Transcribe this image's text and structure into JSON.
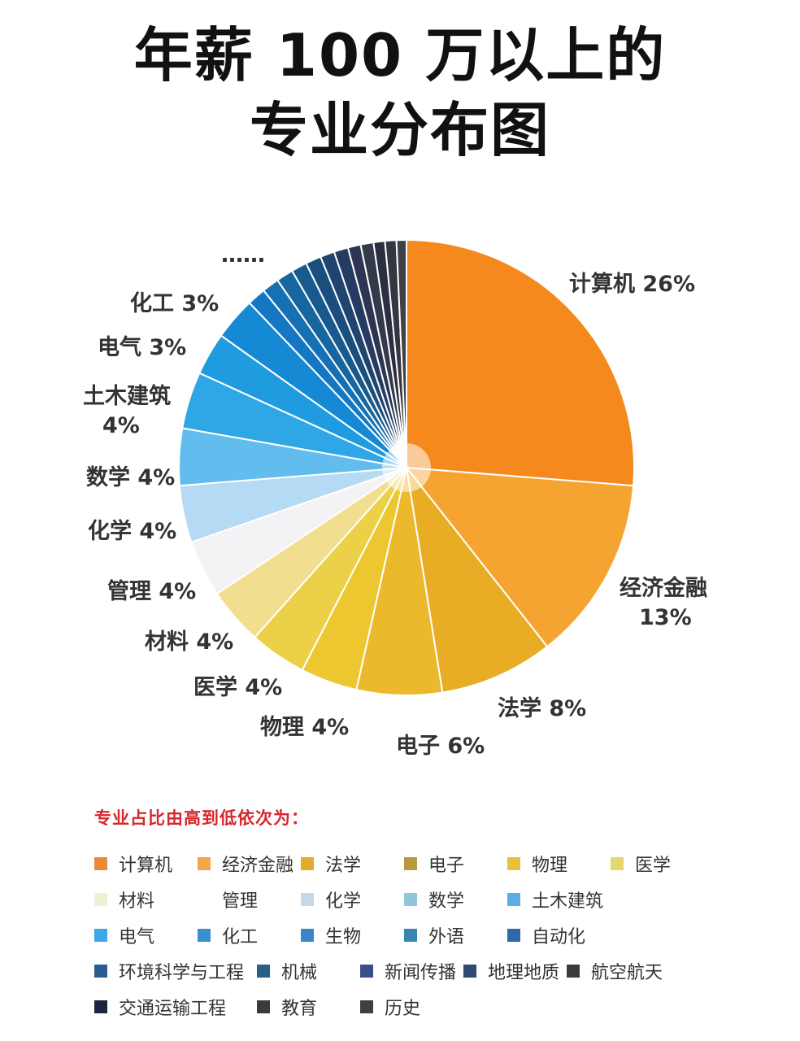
{
  "title": {
    "line1": "年薪 100 万以上的",
    "line2": "专业分布图"
  },
  "chart_data": {
    "type": "pie",
    "title": "年薪 100 万以上的专业分布图",
    "slices": [
      {
        "label": "计算机 26%",
        "value": 26,
        "color": "#f5891e"
      },
      {
        "label": "经济金融\n13%",
        "value": 13,
        "color": "#f6a431"
      },
      {
        "label": "法学 8%",
        "value": 8,
        "color": "#e9ad25"
      },
      {
        "label": "电子 6%",
        "value": 6,
        "color": "#ecb92c"
      },
      {
        "label": "物理 4%",
        "value": 4,
        "color": "#edc730"
      },
      {
        "label": "医学 4%",
        "value": 4,
        "color": "#ecd048"
      },
      {
        "label": "材料 4%",
        "value": 4,
        "color": "#f1de8e"
      },
      {
        "label": "管理 4%",
        "value": 4,
        "color": "#f3f3f6"
      },
      {
        "label": "化学 4%",
        "value": 4,
        "color": "#b5daf3"
      },
      {
        "label": "数学 4%",
        "value": 4,
        "color": "#62bdee"
      },
      {
        "label": "土木建筑\n4%",
        "value": 4,
        "color": "#2fa7e6"
      },
      {
        "label": "电气 3%",
        "value": 3,
        "color": "#1f9be0"
      },
      {
        "label": "化工 3%",
        "value": 3,
        "color": "#1589d4"
      },
      {
        "label": "",
        "value": 1.3,
        "color": "#1577c3"
      },
      {
        "label": "",
        "value": 1.2,
        "color": "#1570b4"
      },
      {
        "label": "",
        "value": 1.2,
        "color": "#16669f"
      },
      {
        "label": "",
        "value": 1.1,
        "color": "#185a8d"
      },
      {
        "label": "",
        "value": 1.1,
        "color": "#1c4e7d"
      },
      {
        "label": "",
        "value": 1.0,
        "color": "#1f4470"
      },
      {
        "label": "",
        "value": 1.0,
        "color": "#253b63"
      },
      {
        "label": "",
        "value": 0.9,
        "color": "#2c3553"
      },
      {
        "label": "",
        "value": 0.9,
        "color": "#333a4a"
      },
      {
        "label": "",
        "value": 0.8,
        "color": "#2a2f42"
      },
      {
        "label": "",
        "value": 0.8,
        "color": "#343640"
      },
      {
        "label": "",
        "value": 0.7,
        "color": "#3f4048"
      }
    ],
    "more_label": "……"
  },
  "legend": {
    "title": "专业占比由高到低依次为：",
    "items": [
      {
        "label": "计算机",
        "color": "#e88a3a"
      },
      {
        "label": "经济金融",
        "color": "#f0a84a"
      },
      {
        "label": "法学",
        "color": "#e6aa2c"
      },
      {
        "label": "电子",
        "color": "#b89a3e"
      },
      {
        "label": "物理",
        "color": "#e8c23a"
      },
      {
        "label": "医学",
        "color": "#e2d86e"
      },
      {
        "label": "材料",
        "color": "#eef0d8"
      },
      {
        "label": "管理",
        "color": "#ffffff"
      },
      {
        "label": "化学",
        "color": "#c4d8ea"
      },
      {
        "label": "数学",
        "color": "#8fc6d8"
      },
      {
        "label": "土木建筑",
        "color": "#5aaee0"
      },
      {
        "label": "电气",
        "color": "#3aa8ea"
      },
      {
        "label": "化工",
        "color": "#3a8fd0"
      },
      {
        "label": "生物",
        "color": "#3d85c6"
      },
      {
        "label": "外语",
        "color": "#3a86b0"
      },
      {
        "label": "自动化",
        "color": "#2f6aa8"
      },
      {
        "label": "环境科学与工程",
        "color": "#2c5d90"
      },
      {
        "label": "机械",
        "color": "#2a5f88"
      },
      {
        "label": "新闻传播",
        "color": "#3a4f88"
      },
      {
        "label": "地理地质",
        "color": "#2d4a70"
      },
      {
        "label": "航空航天",
        "color": "#3a3a40"
      },
      {
        "label": "交通运输工程",
        "color": "#1e2440"
      },
      {
        "label": "教育",
        "color": "#3a3a3a"
      },
      {
        "label": "历史",
        "color": "#3f3f3f"
      }
    ]
  }
}
